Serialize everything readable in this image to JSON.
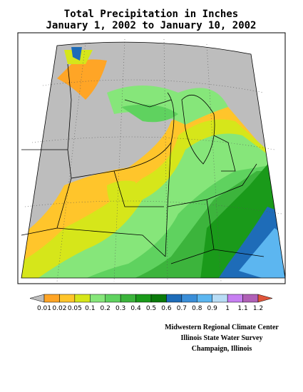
{
  "header": {
    "title_line1": "Total Precipitation in Inches",
    "title_line2": "January 1, 2002 to January 10, 2002"
  },
  "colorbar": {
    "labels": [
      "0.01",
      "0.02",
      "0.05",
      "0.1",
      "0.2",
      "0.3",
      "0.4",
      "0.5",
      "0.6",
      "0.7",
      "0.8",
      "0.9",
      "1",
      "1.1",
      "1.2"
    ],
    "colors": [
      "#bdbdbd",
      "#ffa526",
      "#ffc52b",
      "#d6e61a",
      "#86e67a",
      "#5fd25f",
      "#3cb43c",
      "#1a9a1a",
      "#0b7a0b",
      "#1e6cb8",
      "#3a8ed8",
      "#5cb6f0",
      "#b8dcf5",
      "#c77ff2",
      "#b060b6",
      "#e0553a"
    ]
  },
  "credits": {
    "line1": "Midwestern Regional Climate Center",
    "line2": "Illinois State Water Survey",
    "line3": "Champaign, Illinois"
  }
}
